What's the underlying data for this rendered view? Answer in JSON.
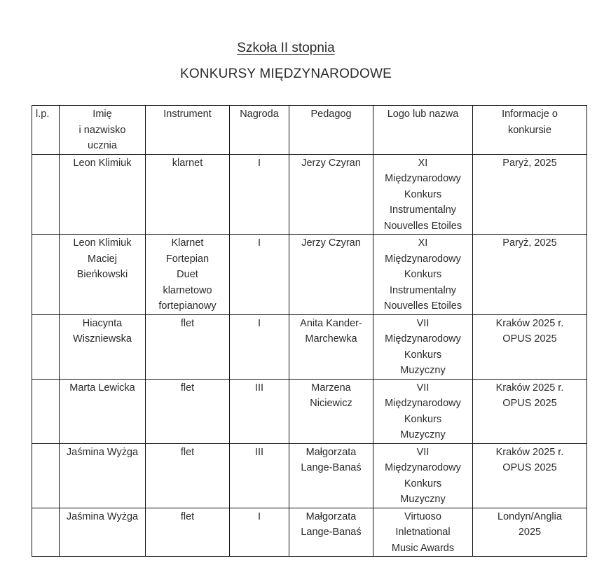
{
  "document": {
    "subtitle": "Szkoła II stopnia",
    "title": "KONKURSY MIĘDZYNARODOWE"
  },
  "table": {
    "headers": [
      [
        "l.p."
      ],
      [
        "Imię",
        "i nazwisko",
        "ucznia"
      ],
      [
        "Instrument"
      ],
      [
        "Nagroda"
      ],
      [
        "Pedagog"
      ],
      [
        "Logo lub nazwa"
      ],
      [
        "Informacje o",
        "konkursie"
      ]
    ],
    "rows": [
      [
        [],
        [
          "Leon Klimiuk"
        ],
        [
          "klarnet"
        ],
        [
          "I"
        ],
        [
          "Jerzy Czyran"
        ],
        [
          "XI",
          "Międzynarodowy",
          "Konkurs",
          "Instrumentalny",
          "Nouvelles Etoiles"
        ],
        [
          "Paryż, 2025"
        ]
      ],
      [
        [],
        [
          "Leon Klimiuk",
          "Maciej",
          "Bieńkowski"
        ],
        [
          "Klarnet",
          "Fortepian",
          "Duet",
          "klarnetowo",
          "fortepianowy"
        ],
        [
          "I"
        ],
        [
          "Jerzy Czyran"
        ],
        [
          "XI",
          "Międzynarodowy",
          "Konkurs",
          "Instrumentalny",
          "Nouvelles Etoiles"
        ],
        [
          "Paryż, 2025"
        ]
      ],
      [
        [],
        [
          "Hiacynta",
          "Wiszniewska"
        ],
        [
          "flet"
        ],
        [
          "I"
        ],
        [
          "Anita Kander-",
          "Marchewka"
        ],
        [
          "VII",
          "Międzynarodowy",
          "Konkurs",
          "Muzyczny"
        ],
        [
          "Kraków 2025 r.",
          "OPUS 2025"
        ]
      ],
      [
        [],
        [
          "Marta Lewicka"
        ],
        [
          "flet"
        ],
        [
          "III"
        ],
        [
          "Marzena",
          "Niciewicz"
        ],
        [
          "VII",
          "Międzynarodowy",
          "Konkurs",
          "Muzyczny"
        ],
        [
          "Kraków 2025 r.",
          "OPUS 2025"
        ]
      ],
      [
        [],
        [
          "Jaśmina Wyżga"
        ],
        [
          "flet"
        ],
        [
          "III"
        ],
        [
          "Małgorzata",
          "Lange-Banaś"
        ],
        [
          "VII",
          "Międzynarodowy",
          "Konkurs",
          "Muzyczny"
        ],
        [
          "Kraków 2025 r.",
          "OPUS 2025"
        ]
      ],
      [
        [],
        [
          "Jaśmina Wyżga"
        ],
        [
          "flet"
        ],
        [
          "I"
        ],
        [
          "Małgorzata",
          "Lange-Banaś"
        ],
        [
          "Virtuoso",
          "Inletnational",
          "Music Awards"
        ],
        [
          "Londyn/Anglia",
          "2025"
        ]
      ]
    ]
  }
}
